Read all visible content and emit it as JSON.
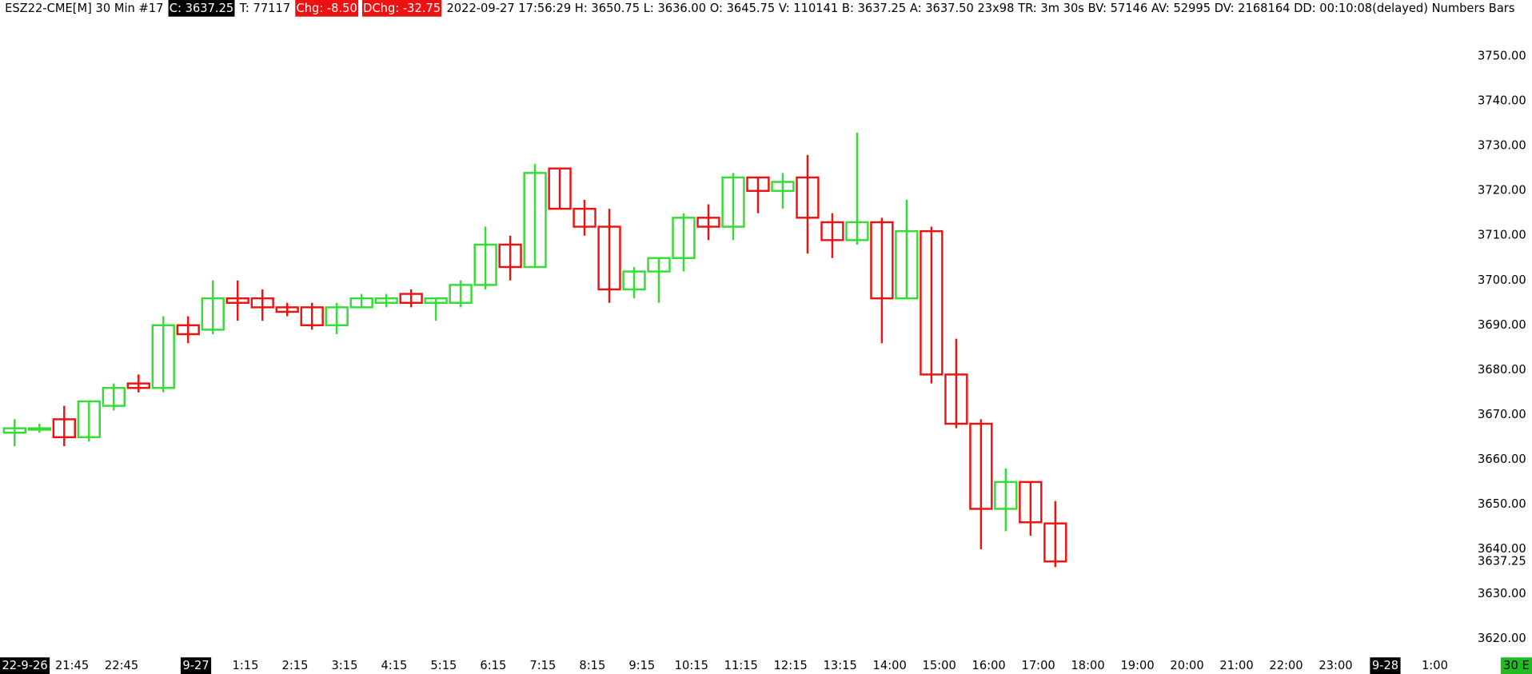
{
  "header": {
    "symbol": "ESZ22-CME[M]  30 Min  #17",
    "close": "C: 3637.25",
    "trades": "T: 77117",
    "chg": "Chg: -8.50",
    "dchg": "DChg: -32.75",
    "details": "2022-09-27 17:56:29 H: 3650.75 L: 3636.00 O: 3645.75 V: 110141 B: 3637.25 A: 3637.50 23x98 TR: 3m 30s BV: 57146 AV: 52995 DV: 2168164 DD: 00:10:08(delayed) Numbers Bars"
  },
  "status": "30 E",
  "chart_data": {
    "type": "candlestick",
    "categories": [
      "22-9-26",
      null,
      "21:45",
      null,
      "22:45",
      null,
      null,
      "9-27",
      null,
      "1:15",
      null,
      "2:15",
      null,
      "3:15",
      null,
      "4:15",
      null,
      "5:15",
      null,
      "6:15",
      null,
      "7:15",
      null,
      "8:15",
      null,
      "9:15",
      null,
      "10:15",
      null,
      "11:15",
      null,
      "12:15",
      null,
      "13:15",
      null,
      "14:00",
      null,
      "15:00",
      null,
      "16:00",
      null,
      "17:00",
      null,
      "18:00",
      null,
      "19:00",
      null,
      "20:00",
      null,
      "21:00",
      null,
      "22:00",
      null,
      "23:00",
      null,
      "9-28",
      null,
      "1:00"
    ],
    "open": [
      3666,
      3667,
      3669,
      3665,
      3672,
      3677,
      3676,
      3690,
      3689,
      3696,
      3696,
      3694,
      3694,
      3690,
      3694,
      3695,
      3697,
      3695,
      3695,
      3699,
      3708,
      3703,
      3725,
      3716,
      3712,
      3698,
      3702,
      3705,
      3714,
      3712,
      3723,
      3720,
      3723,
      3713,
      3709,
      3713,
      3696,
      3711,
      3679,
      3668,
      3649,
      3655,
      3645.75,
      null,
      null,
      null,
      null,
      null,
      null,
      null,
      null,
      null,
      null,
      null,
      null,
      null,
      null,
      null
    ],
    "high": [
      3669,
      3668,
      3672,
      3673,
      3677,
      3679,
      3692,
      3692,
      3700,
      3700,
      3698,
      3695,
      3695,
      3695,
      3697,
      3697,
      3698,
      3696,
      3700,
      3712,
      3710,
      3726,
      3725,
      3718,
      3716,
      3703,
      3705,
      3715,
      3717,
      3724,
      3723,
      3724,
      3728,
      3715,
      3733,
      3714,
      3718,
      3712,
      3687,
      3669,
      3658,
      3655,
      3650.75,
      null,
      null,
      null,
      null,
      null,
      null,
      null,
      null,
      null,
      null,
      null,
      null,
      null,
      null,
      null
    ],
    "low": [
      3663,
      3666,
      3663,
      3664,
      3671,
      3675,
      3675,
      3686,
      3688,
      3691,
      3691,
      3692,
      3689,
      3688,
      3694,
      3694,
      3694,
      3691,
      3694,
      3698,
      3700,
      3703,
      3716,
      3710,
      3695,
      3696,
      3695,
      3702,
      3709,
      3709,
      3715,
      3716,
      3706,
      3705,
      3708,
      3686,
      3696,
      3677,
      3667,
      3640,
      3644,
      3643,
      3636,
      null,
      null,
      null,
      null,
      null,
      null,
      null,
      null,
      null,
      null,
      null,
      null,
      null,
      null,
      null
    ],
    "close": [
      3667,
      3667,
      3665,
      3673,
      3676,
      3676,
      3690,
      3688,
      3696,
      3695,
      3694,
      3693,
      3690,
      3694,
      3696,
      3696,
      3695,
      3696,
      3699,
      3708,
      3703,
      3724,
      3716,
      3712,
      3698,
      3702,
      3705,
      3714,
      3712,
      3723,
      3720,
      3722,
      3714,
      3709,
      3713,
      3696,
      3711,
      3679,
      3668,
      3649,
      3655,
      3646,
      3637.25,
      null,
      null,
      null,
      null,
      null,
      null,
      null,
      null,
      null,
      null,
      null,
      null,
      null,
      null,
      null
    ],
    "up_color": "#33dd33",
    "down_color": "#ee1111",
    "ylim": [
      3613,
      3760
    ],
    "yticks": [
      {
        "value": 3620,
        "label": "3620.00"
      },
      {
        "value": 3630,
        "label": "3630.00"
      },
      {
        "value": 3640,
        "label": "3640.00"
      },
      {
        "value": 3650,
        "label": "3650.00"
      },
      {
        "value": 3660,
        "label": "3660.00"
      },
      {
        "value": 3670,
        "label": "3670.00"
      },
      {
        "value": 3680,
        "label": "3680.00"
      },
      {
        "value": 3690,
        "label": "3690.00"
      },
      {
        "value": 3700,
        "label": "3700.00"
      },
      {
        "value": 3710,
        "label": "3710.00"
      },
      {
        "value": 3720,
        "label": "3720.00"
      },
      {
        "value": 3730,
        "label": "3730.00"
      },
      {
        "value": 3740,
        "label": "3740.00"
      },
      {
        "value": 3750,
        "label": "3750.00"
      }
    ],
    "last_price": {
      "value": 3637.25,
      "label": "3637.25"
    },
    "grid": false
  }
}
